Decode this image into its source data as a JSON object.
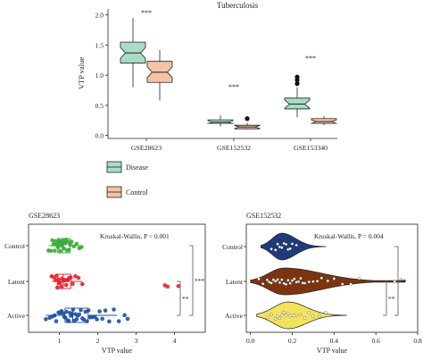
{
  "chart_data": [
    {
      "type": "boxplot",
      "title": "Tuberculosis",
      "ylabel": "VTP value",
      "ylim": [
        -0.05,
        2.1
      ],
      "yticks": [
        "0.0",
        "0.5",
        "1.0",
        "1.5",
        "2.0"
      ],
      "categories": [
        "GSE28623",
        "GSE152532",
        "GSE153340"
      ],
      "significance": [
        "***",
        "***",
        "***"
      ],
      "notched": true,
      "series": [
        {
          "name": "Disease",
          "color": "#a8dcc6",
          "boxes": [
            {
              "whisker_low": 0.8,
              "q1": 1.2,
              "median": 1.37,
              "q3": 1.55,
              "whisker_high": 1.95,
              "outliers": []
            },
            {
              "whisker_low": 0.15,
              "q1": 0.2,
              "median": 0.22,
              "q3": 0.26,
              "whisker_high": 0.33,
              "outliers": []
            },
            {
              "whisker_low": 0.3,
              "q1": 0.44,
              "median": 0.52,
              "q3": 0.62,
              "whisker_high": 0.8,
              "outliers": [
                0.86,
                0.92,
                0.97
              ]
            }
          ]
        },
        {
          "name": "Control",
          "color": "#f5c3a8",
          "boxes": [
            {
              "whisker_low": 0.58,
              "q1": 0.88,
              "median": 1.05,
              "q3": 1.23,
              "whisker_high": 1.42,
              "outliers": []
            },
            {
              "whisker_low": 0.1,
              "q1": 0.11,
              "median": 0.14,
              "q3": 0.17,
              "whisker_high": 0.21,
              "outliers": [
                0.28
              ]
            },
            {
              "whisker_low": 0.17,
              "q1": 0.2,
              "median": 0.23,
              "q3": 0.28,
              "whisker_high": 0.32,
              "outliers": []
            }
          ]
        }
      ],
      "legend": [
        "Disease",
        "Control"
      ],
      "legend_position": "bottom-left"
    },
    {
      "type": "scatter",
      "title": "GSE28623",
      "annotation": "Kruskal-Wallis, P < 0.001",
      "xlabel": "VTP value",
      "xlim": [
        0.2,
        4.8
      ],
      "xticks": [
        "1",
        "2",
        "3",
        "4"
      ],
      "categories": [
        "Control",
        "Latent",
        "Active"
      ],
      "brackets": [
        {
          "from": "Control",
          "to": "Active",
          "label": "***"
        },
        {
          "from": "Latent",
          "to": "Active",
          "label": "**"
        }
      ],
      "series": [
        {
          "name": "Control",
          "color": "#3aa83a",
          "box": {
            "whisker_low": 0.72,
            "q1": 0.95,
            "median": 1.08,
            "q3": 1.28,
            "whisker_high": 1.55
          },
          "values": [
            0.72,
            0.78,
            0.82,
            0.85,
            0.88,
            0.9,
            0.92,
            0.95,
            0.97,
            0.99,
            1.0,
            1.02,
            1.04,
            1.05,
            1.07,
            1.08,
            1.1,
            1.12,
            1.14,
            1.16,
            1.18,
            1.2,
            1.22,
            1.25,
            1.28,
            1.32,
            1.38,
            1.45,
            1.52,
            1.58
          ]
        },
        {
          "name": "Latent",
          "color": "#e8202a",
          "box": {
            "whisker_low": 0.8,
            "q1": 0.95,
            "median": 1.1,
            "q3": 1.3,
            "whisker_high": 1.6
          },
          "values": [
            0.8,
            0.86,
            0.9,
            0.93,
            0.95,
            0.98,
            1.0,
            1.02,
            1.05,
            1.07,
            1.1,
            1.12,
            1.15,
            1.18,
            1.2,
            1.23,
            1.26,
            1.3,
            1.35,
            1.42,
            1.5,
            1.6,
            3.75,
            3.82,
            4.1
          ]
        },
        {
          "name": "Active",
          "color": "#1f4fa0",
          "box": {
            "whisker_low": 0.65,
            "q1": 1.15,
            "median": 1.35,
            "q3": 1.75,
            "whisker_high": 2.5
          },
          "values": [
            0.65,
            0.75,
            0.82,
            0.88,
            0.92,
            0.98,
            1.02,
            1.06,
            1.1,
            1.13,
            1.16,
            1.19,
            1.22,
            1.25,
            1.28,
            1.3,
            1.33,
            1.36,
            1.39,
            1.42,
            1.45,
            1.48,
            1.52,
            1.56,
            1.6,
            1.64,
            1.68,
            1.72,
            1.76,
            1.8,
            1.86,
            1.92,
            1.98,
            2.05,
            2.12,
            2.2,
            2.3,
            2.42,
            2.55,
            2.7,
            2.78
          ]
        }
      ]
    },
    {
      "type": "violin",
      "title": "GSE152532",
      "annotation": "Kruskal-Wallis, P = 0.004",
      "xlabel": "VTP value",
      "xlim": [
        -0.02,
        0.8
      ],
      "xticks": [
        "0.0",
        "0.2",
        "0.4",
        "0.6",
        "0.8"
      ],
      "categories": [
        "Control",
        "Latent",
        "Active"
      ],
      "brackets": [
        {
          "from": "Control",
          "to": "Active",
          "label": "**"
        },
        {
          "from": "Latent",
          "to": "Active",
          "label": "**"
        }
      ],
      "series": [
        {
          "name": "Control",
          "color": "#1f3a7a",
          "range": [
            0.05,
            0.36
          ],
          "mode": 0.15,
          "values": [
            0.1,
            0.12,
            0.13,
            0.14,
            0.15,
            0.15,
            0.16,
            0.17,
            0.18,
            0.19,
            0.2,
            0.22
          ]
        },
        {
          "name": "Latent",
          "color": "#7a3510",
          "range": [
            0.0,
            0.74
          ],
          "mode": 0.16,
          "values": [
            0.04,
            0.06,
            0.08,
            0.09,
            0.1,
            0.11,
            0.12,
            0.13,
            0.14,
            0.15,
            0.16,
            0.17,
            0.18,
            0.19,
            0.2,
            0.21,
            0.22,
            0.23,
            0.24,
            0.25,
            0.26,
            0.28,
            0.3,
            0.32,
            0.34,
            0.37,
            0.4,
            0.44,
            0.48,
            0.52,
            0.69,
            0.72
          ]
        },
        {
          "name": "Active",
          "color": "#f2e35c",
          "range": [
            0.03,
            0.46
          ],
          "mode": 0.18,
          "values": [
            0.08,
            0.1,
            0.12,
            0.13,
            0.14,
            0.15,
            0.16,
            0.17,
            0.18,
            0.19,
            0.2,
            0.21,
            0.22,
            0.24,
            0.26,
            0.28,
            0.3,
            0.33,
            0.36
          ]
        }
      ]
    }
  ]
}
